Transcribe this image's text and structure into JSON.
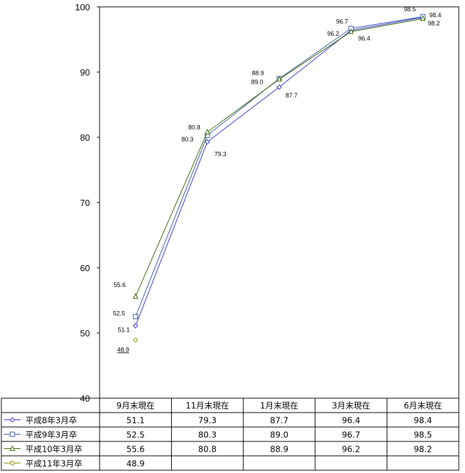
{
  "chart_data": {
    "type": "line",
    "categories": [
      "9月末現在",
      "11月末現在",
      "1月末現在",
      "3月末現在",
      "6月末現在"
    ],
    "series": [
      {
        "name": "平成8年3月卒",
        "values": [
          51.1,
          79.3,
          87.7,
          96.4,
          98.4
        ],
        "labels": [
          "51.1",
          "79.3",
          "87.7",
          "96.4",
          "98.4"
        ],
        "marker": "diamond",
        "color": "#3333cc"
      },
      {
        "name": "平成9年3月卒",
        "values": [
          52.5,
          80.3,
          89.0,
          96.7,
          98.5
        ],
        "labels": [
          "52.5",
          "80.3",
          "89.0",
          "96.7",
          "98.5"
        ],
        "marker": "square",
        "color": "#3355aa"
      },
      {
        "name": "平成10年3月卒",
        "values": [
          55.6,
          80.8,
          88.9,
          96.2,
          98.2
        ],
        "labels": [
          "55.6",
          "80.8",
          "88.9",
          "96.2",
          "98.2"
        ],
        "marker": "triangle",
        "color": "#336600"
      },
      {
        "name": "平成11年3月卒",
        "values": [
          48.9,
          null,
          null,
          null,
          null
        ],
        "labels": [
          "48.9",
          "",
          "",
          "",
          ""
        ],
        "marker": "circle",
        "color": "#888800"
      }
    ],
    "ylim": [
      40,
      100
    ],
    "yticks": [
      "40",
      "50",
      "60",
      "70",
      "80",
      "90",
      "100"
    ],
    "table": {
      "rows": [
        [
          "51.1",
          "79.3",
          "87.7",
          "96.4",
          "98.4"
        ],
        [
          "52.5",
          "80.3",
          "89.0",
          "96.7",
          "98.5"
        ],
        [
          "55.6",
          "80.8",
          "88.9",
          "96.2",
          "98.2"
        ],
        [
          "48.9",
          "",
          "",
          "",
          ""
        ]
      ]
    },
    "grid": false,
    "legend": "data-table"
  }
}
